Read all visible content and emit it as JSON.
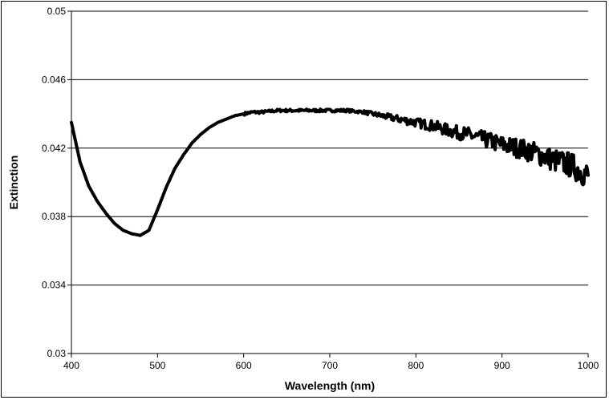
{
  "chart_data": {
    "type": "line",
    "title": "",
    "xlabel": "Wavelength (nm)",
    "ylabel": "Extinction",
    "xlim": [
      400,
      1000
    ],
    "ylim": [
      0.03,
      0.05
    ],
    "x_ticks": [
      "400",
      "500",
      "600",
      "700",
      "800",
      "900",
      "1000"
    ],
    "y_ticks": [
      "0.03",
      "0.034",
      "0.038",
      "0.042",
      "0.046",
      "0.05"
    ],
    "grid": "horizontal",
    "legend": "none",
    "line_color": "#000000",
    "series": [
      {
        "x": [
          400,
          410,
          420,
          430,
          440,
          450,
          460,
          470,
          480,
          490,
          500,
          510,
          520,
          530,
          540,
          550,
          560,
          570,
          580,
          590,
          600,
          610,
          620,
          640,
          660,
          680,
          700,
          720,
          740,
          760,
          780,
          800,
          820,
          840,
          860,
          880,
          900,
          920,
          940,
          960,
          980,
          1000
        ],
        "values": [
          0.0435,
          0.0412,
          0.0398,
          0.0389,
          0.0382,
          0.0376,
          0.0372,
          0.037,
          0.0369,
          0.0372,
          0.0384,
          0.0397,
          0.0408,
          0.0416,
          0.0423,
          0.0428,
          0.0432,
          0.0435,
          0.0437,
          0.0439,
          0.044,
          0.0441,
          0.0441,
          0.0442,
          0.0442,
          0.0442,
          0.0442,
          0.0442,
          0.0441,
          0.0439,
          0.0437,
          0.0435,
          0.0433,
          0.043,
          0.0428,
          0.0425,
          0.0422,
          0.042,
          0.0417,
          0.0413,
          0.041,
          0.0404
        ],
        "noise_from_x": 740,
        "noise_amplitude": [
          0.0001,
          0.0008
        ]
      }
    ]
  }
}
